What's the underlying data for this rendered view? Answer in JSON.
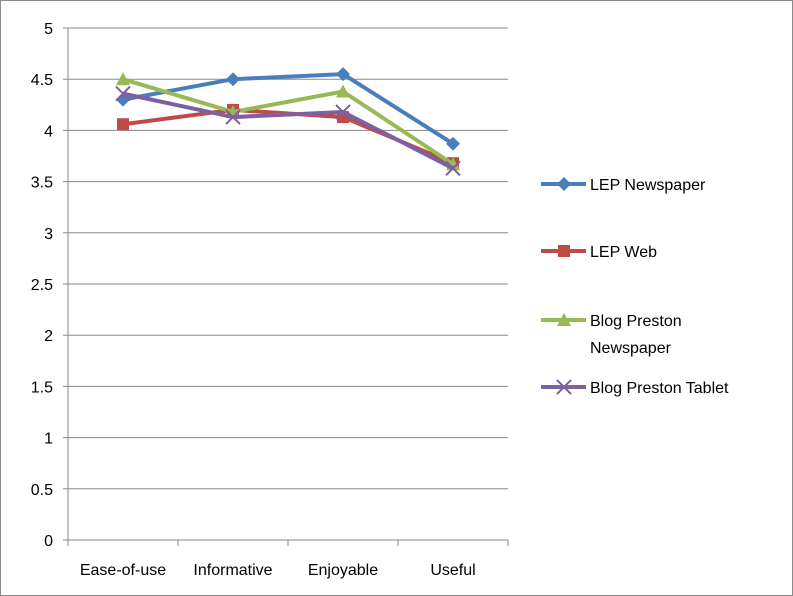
{
  "chart_data": {
    "type": "line",
    "title": "",
    "xlabel": "",
    "ylabel": "",
    "categories": [
      "Ease-of-use",
      "Informative",
      "Enjoyable",
      "Useful"
    ],
    "ylim": [
      0,
      5
    ],
    "yticks": [
      "0",
      "0.5",
      "1",
      "1.5",
      "2",
      "2.5",
      "3",
      "3.5",
      "4",
      "4.5",
      "5"
    ],
    "grid": true,
    "legend_position": "right",
    "series": [
      {
        "name": "LEP Newspaper",
        "values": [
          4.3,
          4.5,
          4.55,
          3.87
        ],
        "color": "#4a7ebb",
        "marker": "diamond"
      },
      {
        "name": "LEP Web",
        "values": [
          4.06,
          4.2,
          4.13,
          3.68
        ],
        "color": "#be4b48",
        "marker": "square"
      },
      {
        "name": "Blog Preston Newspaper",
        "values": [
          4.5,
          4.18,
          4.38,
          3.67
        ],
        "color": "#98b954",
        "marker": "triangle"
      },
      {
        "name": "Blog Preston Tablet",
        "values": [
          4.36,
          4.13,
          4.18,
          3.63
        ],
        "color": "#7d60a0",
        "marker": "x"
      }
    ],
    "legend_lines": [
      [
        "LEP Newspaper"
      ],
      [
        "LEP Web"
      ],
      [
        "Blog Preston",
        "Newspaper"
      ],
      [
        "Blog Preston Tablet"
      ]
    ]
  }
}
